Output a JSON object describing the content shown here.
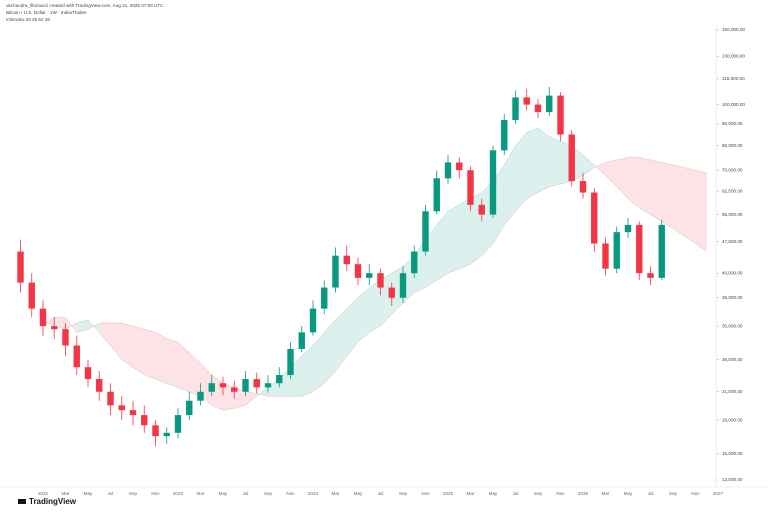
{
  "chart_data": {
    "type": "candlestick",
    "title": "ukchandra_fibonacci created with TradingView.com, Aug 21, 2025 07:08 UTC",
    "subtitle": "Bitcoin / U.S. Dollar · 1W · IndexTrades",
    "indicator": "Ichimoku 20 26 52 26",
    "brand": "TradingView",
    "log_scale": true,
    "up_color": "#089981",
    "down_color": "#f23645",
    "categories": [
      null,
      null,
      "2022",
      null,
      "Mar",
      null,
      "May",
      null,
      "Jul",
      null,
      "Sep",
      null,
      "Nov",
      null,
      "2023",
      null,
      "Mar",
      null,
      "May",
      null,
      "Jul",
      null,
      "Sep",
      null,
      "Nov",
      null,
      "2024",
      null,
      "Mar",
      null,
      "May",
      null,
      "Jul",
      null,
      "Sep",
      null,
      "Nov",
      null,
      "2025",
      null,
      "Mar",
      null,
      "May",
      null,
      "Jul",
      null,
      "Sep",
      null,
      "Nov",
      null,
      "2026",
      null,
      "Mar",
      null,
      "May",
      null,
      "Jul",
      null,
      "Sep",
      null,
      "Nov",
      null,
      "2027"
    ],
    "open": [
      45000,
      38000,
      33000,
      30000,
      29500,
      27000,
      24000,
      22500,
      21000,
      19500,
      19000,
      18500,
      17500,
      16500,
      16800,
      18500,
      20000,
      21000,
      22000,
      21500,
      21000,
      22500,
      21500,
      22000,
      23000,
      26500,
      29000,
      33000,
      37000,
      44000,
      42000,
      39000,
      40000,
      37000,
      35000,
      40000,
      45000,
      56000,
      67000,
      73000,
      70000,
      58000,
      55000,
      78000,
      92000,
      104000,
      100000,
      96000,
      105000,
      85000,
      66000,
      62000,
      47000,
      41000,
      50000,
      52000,
      40000,
      39000,
      null,
      null,
      null,
      null,
      null
    ],
    "high": [
      48000,
      40000,
      34500,
      31500,
      30500,
      28500,
      25000,
      23500,
      22000,
      20500,
      20000,
      19500,
      18000,
      17300,
      19200,
      21000,
      22000,
      23000,
      22800,
      22300,
      23500,
      23300,
      23000,
      24000,
      27500,
      30000,
      34500,
      38500,
      46000,
      46500,
      43500,
      42000,
      41000,
      38000,
      41500,
      46500,
      58000,
      70000,
      76000,
      75000,
      71500,
      60000,
      80000,
      95000,
      108000,
      109000,
      103000,
      110000,
      107000,
      87000,
      69000,
      63500,
      48500,
      51500,
      54000,
      53000,
      41500,
      53500,
      null,
      null,
      null,
      null,
      null
    ],
    "low": [
      36000,
      31500,
      28500,
      28000,
      25500,
      23000,
      21500,
      20000,
      18500,
      18000,
      17500,
      16800,
      15600,
      15800,
      16300,
      18000,
      19500,
      20500,
      20600,
      20200,
      20500,
      20800,
      20900,
      21500,
      22500,
      26000,
      28500,
      32000,
      36000,
      40500,
      37500,
      37500,
      35500,
      33500,
      34000,
      39000,
      44000,
      55000,
      65000,
      67000,
      56000,
      53000,
      54000,
      76000,
      90000,
      97000,
      93000,
      94000,
      82000,
      64000,
      60000,
      45000,
      39500,
      40000,
      48500,
      38500,
      37500,
      38500,
      null,
      null,
      null,
      null,
      null
    ],
    "close": [
      38000,
      33000,
      30000,
      29500,
      27000,
      24000,
      22500,
      21000,
      19500,
      19000,
      18500,
      17500,
      16500,
      16800,
      18500,
      20000,
      21000,
      22000,
      21500,
      21000,
      22500,
      21500,
      22000,
      23000,
      26500,
      29000,
      33000,
      37000,
      44000,
      42000,
      39000,
      40000,
      37000,
      35000,
      40000,
      45000,
      56000,
      67000,
      73000,
      70000,
      58000,
      55000,
      78000,
      92000,
      104000,
      100000,
      96000,
      105000,
      85000,
      66000,
      62000,
      47000,
      41000,
      50000,
      52000,
      40000,
      39000,
      52000,
      null,
      null,
      null,
      null,
      null
    ],
    "ichimoku": {
      "bull_color": "#089981",
      "bear_color": "#f23645",
      "span_a": [
        null,
        null,
        31000,
        30000,
        29500,
        30500,
        31000,
        29000,
        27000,
        25000,
        24000,
        23000,
        22500,
        22000,
        21500,
        21000,
        20500,
        19500,
        19000,
        19200,
        19500,
        20500,
        21500,
        22500,
        24000,
        25500,
        27000,
        29000,
        31000,
        33000,
        35000,
        37000,
        38500,
        40000,
        41500,
        44000,
        48000,
        52000,
        56000,
        58000,
        60000,
        62000,
        66000,
        72000,
        80000,
        86000,
        88000,
        84000,
        82000,
        80000,
        76000,
        72000,
        68000,
        64000,
        60000,
        57000,
        55000,
        53000,
        51000,
        49000,
        47000,
        45000,
        null
      ],
      "span_b": [
        null,
        null,
        30000,
        31500,
        31500,
        29000,
        29500,
        30500,
        30500,
        30500,
        30000,
        29500,
        29000,
        28000,
        27500,
        26000,
        24500,
        23000,
        22000,
        21500,
        21000,
        20800,
        20500,
        20500,
        20500,
        20500,
        21000,
        22000,
        23500,
        25500,
        27500,
        29000,
        30000,
        32000,
        34000,
        36000,
        37000,
        38500,
        40000,
        41000,
        42000,
        44000,
        47000,
        52000,
        56000,
        60000,
        62000,
        64000,
        65000,
        66000,
        68000,
        71000,
        73000,
        74000,
        75000,
        75000,
        74000,
        73000,
        72000,
        71000,
        70000,
        69000,
        null
      ]
    },
    "ylim": [
      13000,
      150000
    ],
    "yticks": [
      {
        "value": 150000,
        "label": "150,000.00"
      },
      {
        "value": 130000,
        "label": "130,000.00"
      },
      {
        "value": 115000,
        "label": "115,000.00"
      },
      {
        "value": 100000,
        "label": "100,000.00"
      },
      {
        "value": 90000,
        "label": "90,000.00"
      },
      {
        "value": 80000,
        "label": "80,000.00"
      },
      {
        "value": 70000,
        "label": "70,000.00"
      },
      {
        "value": 62500,
        "label": "62,500.00"
      },
      {
        "value": 55000,
        "label": "55,000.00"
      },
      {
        "value": 47500,
        "label": "47,500.00"
      },
      {
        "value": 40000,
        "label": "40,000.00"
      },
      {
        "value": 35000,
        "label": "35,000.00"
      },
      {
        "value": 30000,
        "label": "30,000.00"
      },
      {
        "value": 25000,
        "label": "25,000.00"
      },
      {
        "value": 21000,
        "label": "21,000.00"
      },
      {
        "value": 18000,
        "label": "18,000.00"
      },
      {
        "value": 15000,
        "label": "15,000.00"
      },
      {
        "value": 13000,
        "label": "13,000.00"
      }
    ]
  }
}
